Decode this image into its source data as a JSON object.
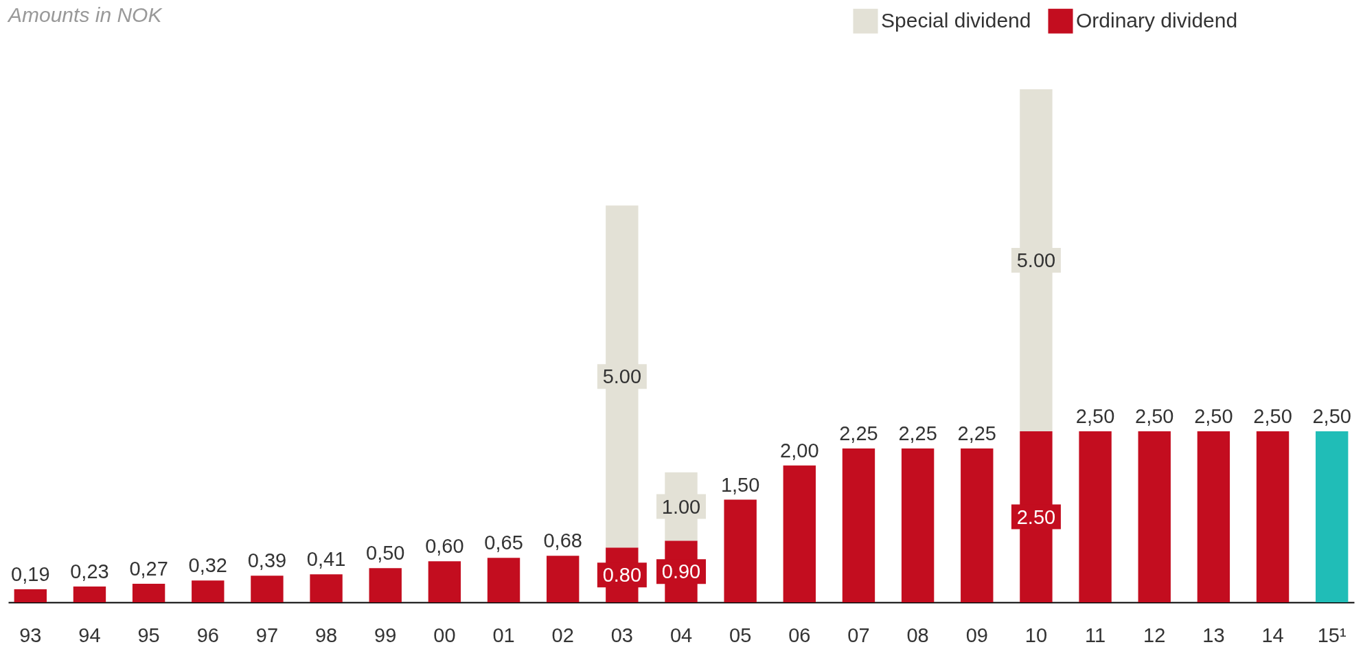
{
  "chart_data": {
    "type": "bar",
    "title": "Amounts in NOK",
    "stacked": true,
    "legend": "top right",
    "grid": false,
    "categories": [
      "93",
      "94",
      "95",
      "96",
      "97",
      "98",
      "99",
      "00",
      "01",
      "02",
      "03",
      "04",
      "05",
      "06",
      "07",
      "08",
      "09",
      "10",
      "11",
      "12",
      "13",
      "14",
      "15¹"
    ],
    "series": [
      {
        "name": "Ordinary dividend",
        "color": "#c30d1f",
        "colors": [
          "#c30d1f",
          "#c30d1f",
          "#c30d1f",
          "#c30d1f",
          "#c30d1f",
          "#c30d1f",
          "#c30d1f",
          "#c30d1f",
          "#c30d1f",
          "#c30d1f",
          "#c30d1f",
          "#c30d1f",
          "#c30d1f",
          "#c30d1f",
          "#c30d1f",
          "#c30d1f",
          "#c30d1f",
          "#c30d1f",
          "#c30d1f",
          "#c30d1f",
          "#c30d1f",
          "#c30d1f",
          "#20bdb7"
        ],
        "values": [
          0.19,
          0.23,
          0.27,
          0.32,
          0.39,
          0.41,
          0.5,
          0.6,
          0.65,
          0.68,
          0.8,
          0.9,
          1.5,
          2.0,
          2.25,
          2.25,
          2.25,
          2.5,
          2.5,
          2.5,
          2.5,
          2.5,
          2.5
        ],
        "value_labels": [
          "0,19",
          "0,23",
          "0,27",
          "0,32",
          "0,39",
          "0,41",
          "0,50",
          "0,60",
          "0,65",
          "0,68",
          "0.80",
          "0.90",
          "1,50",
          "2,00",
          "2,25",
          "2,25",
          "2,25",
          "2.50",
          "2,50",
          "2,50",
          "2,50",
          "2,50",
          "2,50"
        ]
      },
      {
        "name": "Special dividend",
        "color": "#e3e1d6",
        "values": [
          null,
          null,
          null,
          null,
          null,
          null,
          null,
          null,
          null,
          null,
          5.0,
          1.0,
          null,
          null,
          null,
          null,
          null,
          5.0,
          null,
          null,
          null,
          null,
          null
        ],
        "value_labels": [
          null,
          null,
          null,
          null,
          null,
          null,
          null,
          null,
          null,
          null,
          "5.00",
          "1.00",
          null,
          null,
          null,
          null,
          null,
          "5.00",
          null,
          null,
          null,
          null,
          null
        ]
      }
    ]
  }
}
